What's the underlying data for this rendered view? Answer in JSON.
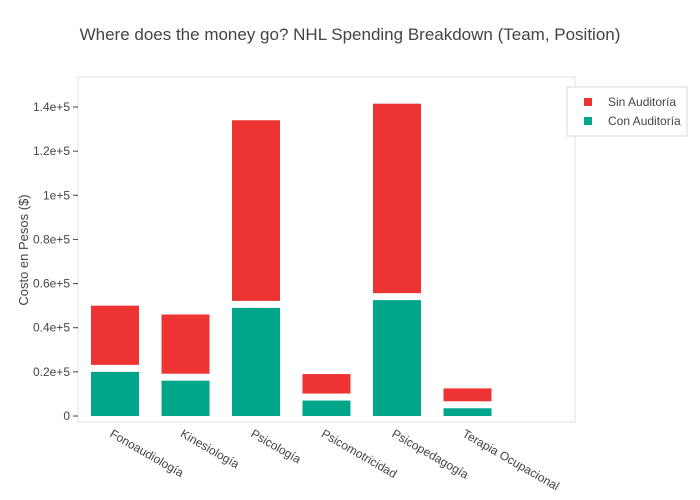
{
  "chart_data": {
    "type": "bar",
    "barmode": "stack",
    "title": "Where does the money go?  NHL Spending Breakdown (Team, Position)",
    "xlabel": "",
    "ylabel": "Costo en Pesos ($)",
    "categories": [
      "Fonoaudiología",
      "Kinesiología",
      "Psicología",
      "Psicomotricidad",
      "Psicopedagogía",
      "Terapia Ocupacional"
    ],
    "series": [
      {
        "name": "Con Auditoría",
        "color": "#00a68a",
        "values": [
          20000,
          16000,
          49000,
          7000,
          52500,
          3500
        ]
      },
      {
        "name": "Sin Auditoría",
        "color": "#ee3333",
        "values": [
          30000,
          30000,
          85000,
          12000,
          89000,
          9000
        ]
      }
    ],
    "ylim": [
      0,
      150000
    ],
    "yticks": [
      0,
      20000,
      40000,
      60000,
      80000,
      100000,
      120000,
      140000
    ],
    "ytick_labels": [
      "0",
      "0.2e+5",
      "0.4e+5",
      "0.6e+5",
      "0.8e+5",
      "1e+5",
      "1.2e+5",
      "1.4e+5"
    ],
    "legend": {
      "position": "top-right",
      "entries": [
        "Sin Auditoría",
        "Con Auditoría"
      ]
    },
    "grid": false
  }
}
